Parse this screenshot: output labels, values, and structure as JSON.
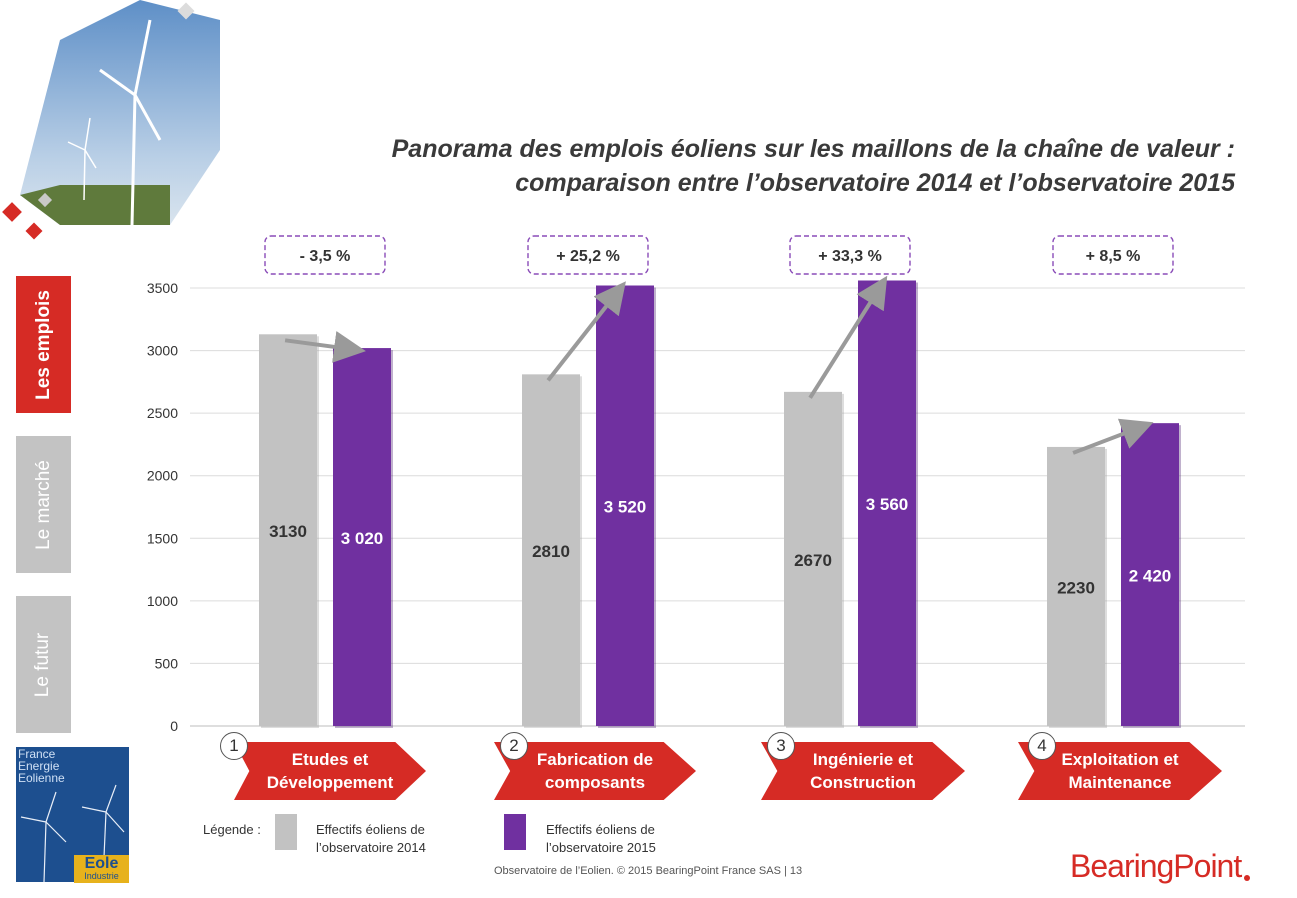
{
  "title": {
    "line1": "Panorama des emplois éoliens sur les maillons de la chaîne de valeur :",
    "line2": "comparaison entre l’observatoire 2014 et l’observatoire 2015"
  },
  "side_tabs": [
    {
      "label": "Les emplois",
      "active": true
    },
    {
      "label": "Le marché",
      "active": false
    },
    {
      "label": "Le futur",
      "active": false
    }
  ],
  "chart_data": {
    "type": "bar",
    "categories": [
      "Etudes et Développement",
      "Fabrication de composants",
      "Ingénierie et Construction",
      "Exploitation et Maintenance"
    ],
    "series": [
      {
        "name": "Effectifs éoliens de l’observatoire 2014",
        "color": "#c2c2c2",
        "values": [
          3130,
          2810,
          2670,
          2230
        ],
        "labels": [
          "3130",
          "2810",
          "2670",
          "2230"
        ]
      },
      {
        "name": "Effectifs éoliens de l’observatoire 2015",
        "color": "#7030a0",
        "values": [
          3020,
          3520,
          3560,
          2420
        ],
        "labels": [
          "3 020",
          "3 520",
          "3 560",
          "2 420"
        ]
      }
    ],
    "changes": [
      "- 3,5 %",
      "+ 25,2 %",
      "+ 33,3 %",
      "+ 8,5 %"
    ],
    "ylim": [
      0,
      3500
    ],
    "yticks": [
      0,
      500,
      1000,
      1500,
      2000,
      2500,
      3000,
      3500
    ],
    "grid": true
  },
  "steps": [
    {
      "num": "1",
      "line1": "Etudes et",
      "line2": "Développement"
    },
    {
      "num": "2",
      "line1": "Fabrication de",
      "line2": "composants"
    },
    {
      "num": "3",
      "line1": "Ingénierie et",
      "line2": "Construction"
    },
    {
      "num": "4",
      "line1": "Exploitation et",
      "line2": "Maintenance"
    }
  ],
  "legend": {
    "label": "Légende :",
    "item1_line1": "Effectifs éoliens de",
    "item1_line2": "l’observatoire 2014",
    "item2_line1": "Effectifs éoliens de",
    "item2_line2": "l’observatoire 2015"
  },
  "footer": "Observatoire de l’Eolien. © 2015 BearingPoint France SAS | 13",
  "brand": "BearingPoint",
  "logo": {
    "line1": "France",
    "line2": "Energie",
    "line3": "Eolienne",
    "eole": "Eole",
    "industrie": "Industrie"
  },
  "colors": {
    "accent": "#d62b25",
    "purple": "#7030a0",
    "grey": "#c2c2c2"
  }
}
